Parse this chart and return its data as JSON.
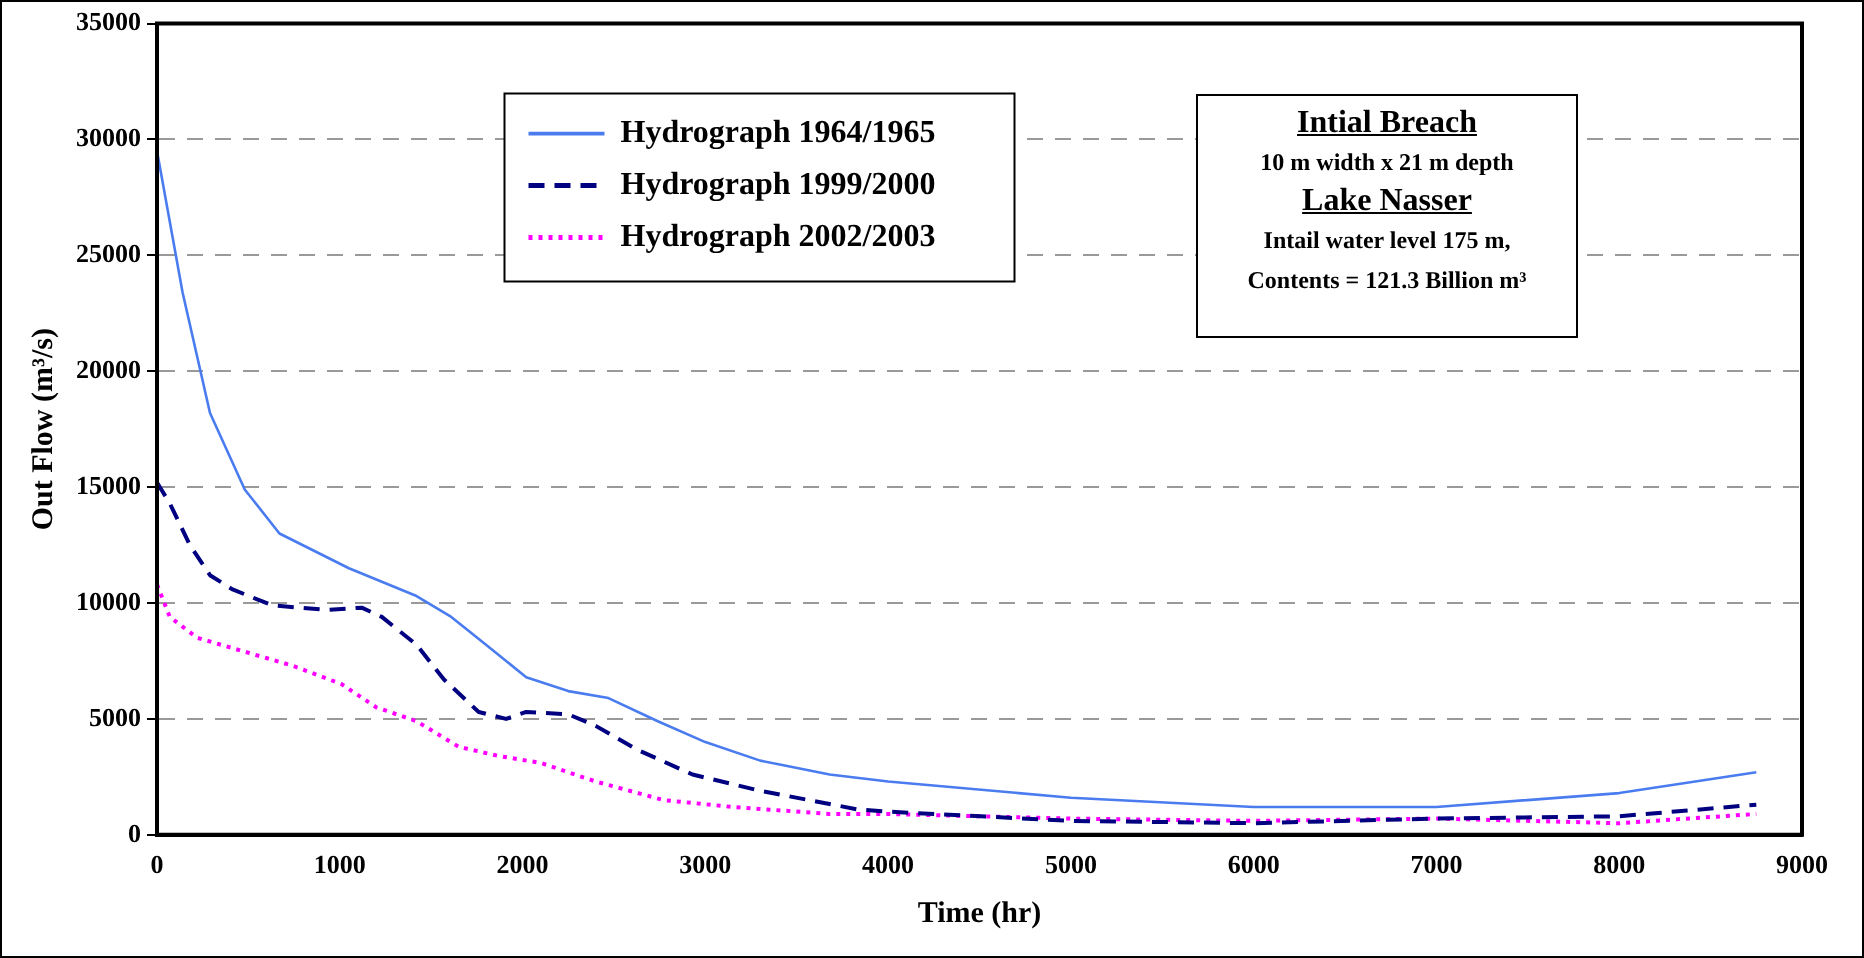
{
  "chart_data": {
    "type": "line",
    "xlabel": "Time (hr)",
    "ylabel": "Out Flow (m³/s)",
    "xlim": [
      0,
      9000
    ],
    "xticks": [
      0,
      1000,
      2000,
      3000,
      4000,
      5000,
      6000,
      7000,
      8000,
      9000
    ],
    "ylim": [
      0,
      35000
    ],
    "yticks": [
      0,
      5000,
      10000,
      15000,
      20000,
      25000,
      30000,
      35000
    ],
    "grid": "y",
    "legend": "top",
    "marker": "none",
    "annotations": [
      "Intial Breach",
      "10 m width x 21 m depth",
      "Lake Nasser",
      "Intail water level 175 m,",
      "Contents = 121.3 Billion m³"
    ],
    "series": [
      {
        "name": "Hydrograph 1964/1965",
        "color": "#4a7cf0",
        "line_style": "solid",
        "x": [
          0,
          140,
          290,
          480,
          670,
          1050,
          1420,
          1610,
          1800,
          2020,
          2250,
          2470,
          2740,
          3000,
          3300,
          3680,
          4000,
          5000,
          6000,
          7000,
          8000,
          8750
        ],
        "values": [
          29500,
          23400,
          18200,
          14900,
          13000,
          11500,
          10300,
          9400,
          8200,
          6800,
          6200,
          5900,
          4900,
          4000,
          3200,
          2600,
          2300,
          1600,
          1200,
          1200,
          1800,
          2700
        ]
      },
      {
        "name": "Hydrograph 1999/2000",
        "color": "#000080",
        "line_style": "dashed",
        "x": [
          0,
          70,
          180,
          290,
          410,
          630,
          930,
          1120,
          1230,
          1420,
          1570,
          1760,
          1910,
          2020,
          2250,
          2400,
          2620,
          2930,
          3300,
          3830,
          4000,
          5000,
          6000,
          7000,
          8000,
          8750
        ],
        "values": [
          15200,
          14300,
          12500,
          11200,
          10600,
          9900,
          9700,
          9800,
          9400,
          8200,
          6700,
          5300,
          5000,
          5300,
          5200,
          4700,
          3700,
          2600,
          1900,
          1100,
          1000,
          600,
          500,
          700,
          800,
          1300
        ]
      },
      {
        "name": "Hydrograph 2002/2003",
        "color": "#ff00ff",
        "line_style": "dotted",
        "x": [
          0,
          70,
          220,
          480,
          740,
          1010,
          1200,
          1420,
          1650,
          1870,
          2100,
          2400,
          2770,
          3150,
          3680,
          4000,
          5000,
          6000,
          7000,
          8000,
          8750
        ],
        "values": [
          10800,
          9400,
          8500,
          7900,
          7300,
          6500,
          5500,
          4900,
          3800,
          3400,
          3100,
          2300,
          1500,
          1200,
          900,
          900,
          700,
          600,
          700,
          500,
          900
        ]
      }
    ]
  }
}
